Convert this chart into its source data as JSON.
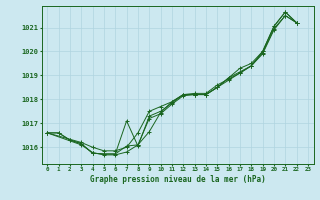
{
  "title": "Graphe pression niveau de la mer (hPa)",
  "background_color": "#cce8f0",
  "grid_color": "#b0d4e0",
  "line_color": "#1a6620",
  "x_ticks": [
    0,
    1,
    2,
    3,
    4,
    5,
    6,
    7,
    8,
    9,
    10,
    11,
    12,
    13,
    14,
    15,
    16,
    17,
    18,
    19,
    20,
    21,
    22,
    23
  ],
  "ylim": [
    1015.3,
    1021.9
  ],
  "y_ticks": [
    1016,
    1017,
    1018,
    1019,
    1020,
    1021
  ],
  "series": [
    [
      1016.6,
      1016.6,
      1016.3,
      1016.15,
      1015.75,
      1015.72,
      1015.72,
      1017.1,
      1016.05,
      1017.3,
      1017.5,
      1017.85,
      1018.2,
      1018.2,
      1018.2,
      1018.5,
      1018.9,
      1019.15,
      1019.4,
      1020.0,
      1021.05,
      1021.65,
      1021.2,
      null
    ],
    [
      1016.6,
      1016.6,
      1016.3,
      1016.15,
      1015.75,
      1015.72,
      1015.72,
      1016.05,
      1016.1,
      1016.65,
      1017.45,
      1017.9,
      1018.2,
      1018.2,
      1018.2,
      1018.5,
      1018.9,
      1019.3,
      1019.5,
      1020.0,
      1021.05,
      1021.65,
      1021.2,
      null
    ],
    [
      1016.6,
      null,
      null,
      1016.2,
      1016.0,
      1015.85,
      1015.85,
      1016.0,
      1016.6,
      1017.5,
      1017.7,
      1017.9,
      1018.2,
      1018.25,
      1018.25,
      1018.6,
      1018.85,
      1019.1,
      1019.4,
      1019.9,
      1020.9,
      1021.5,
      1021.2,
      null
    ],
    [
      1016.6,
      null,
      null,
      1016.1,
      1015.78,
      1015.68,
      1015.68,
      1015.8,
      1016.1,
      1017.2,
      1017.4,
      1017.8,
      1018.15,
      1018.2,
      1018.2,
      1018.5,
      1018.8,
      1019.1,
      1019.4,
      1019.95,
      1020.95,
      1021.5,
      1021.2,
      null
    ]
  ]
}
